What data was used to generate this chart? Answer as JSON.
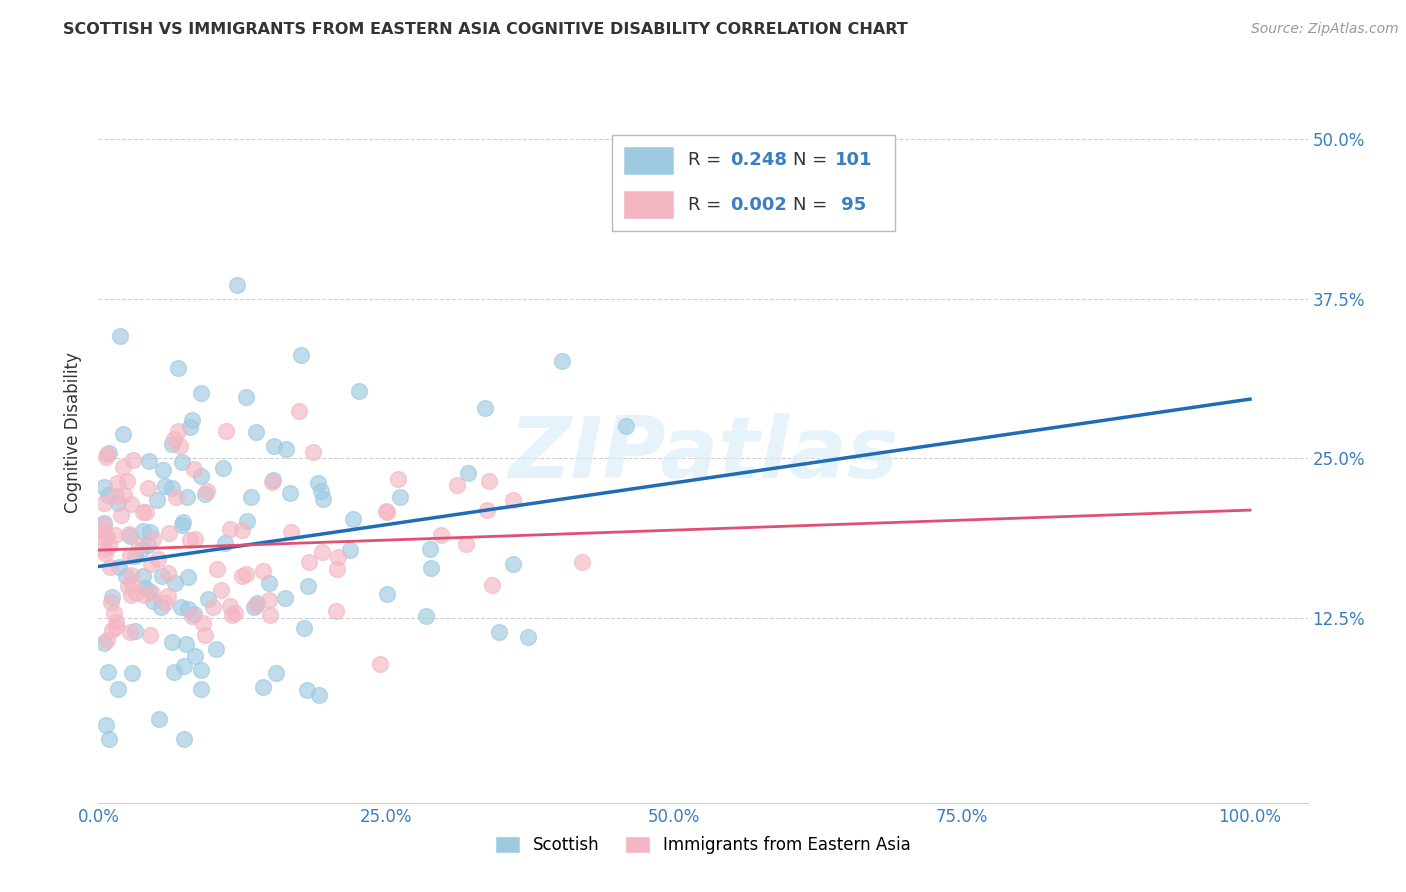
{
  "title": "SCOTTISH VS IMMIGRANTS FROM EASTERN ASIA COGNITIVE DISABILITY CORRELATION CHART",
  "source": "Source: ZipAtlas.com",
  "ylabel": "Cognitive Disability",
  "ytick_labels": [
    "12.5%",
    "25.0%",
    "37.5%",
    "50.0%"
  ],
  "ytick_values": [
    0.125,
    0.25,
    0.375,
    0.5
  ],
  "xtick_labels": [
    "0.0%",
    "25.0%",
    "50.0%",
    "75.0%",
    "100.0%"
  ],
  "xtick_values": [
    0.0,
    0.25,
    0.5,
    0.75,
    1.0
  ],
  "xlim": [
    0.0,
    1.05
  ],
  "ylim": [
    -0.02,
    0.56
  ],
  "blue_color": "#9ecae1",
  "pink_color": "#f4b6c2",
  "line_blue": "#1f6db5",
  "line_pink": "#e05070",
  "legend_label1": "Scottish",
  "legend_label2": "Immigrants from Eastern Asia",
  "R1": 0.248,
  "N1": 101,
  "R2": 0.002,
  "N2": 95,
  "watermark": "ZIPatlas",
  "accent_color": "#3a7ec2",
  "grid_color": "#d0d0d0",
  "text_color": "#333333"
}
